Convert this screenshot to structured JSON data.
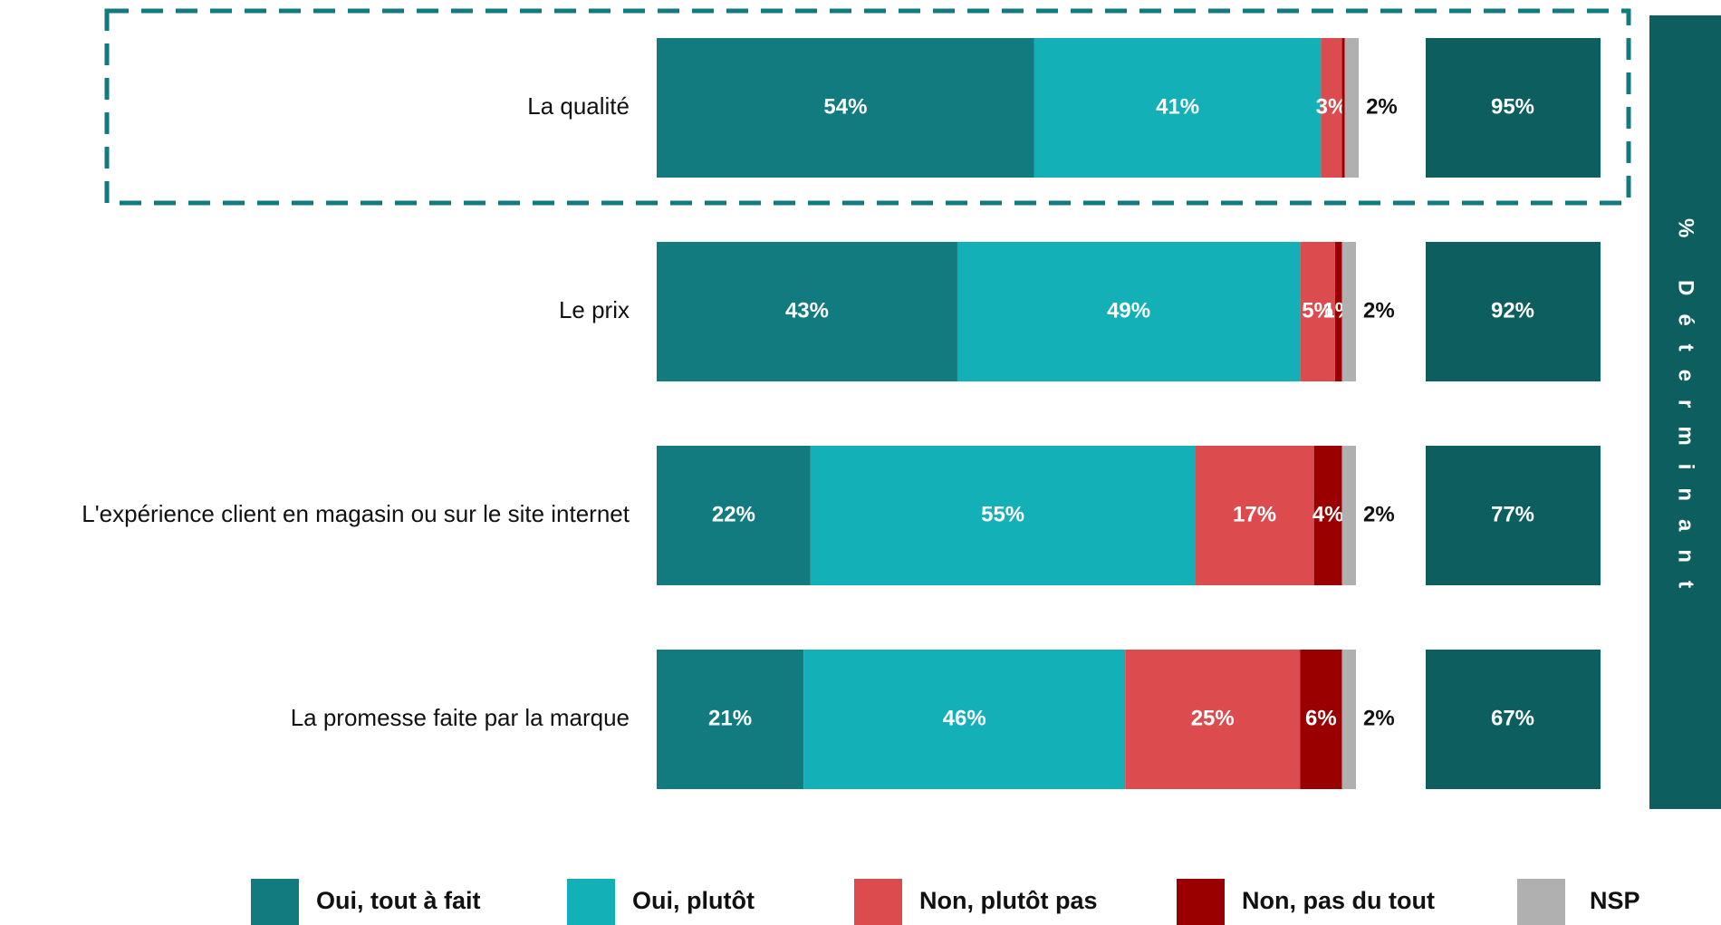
{
  "chart_data": {
    "type": "stacked_barh",
    "categories": [
      "La qualité",
      "Le prix",
      "L'expérience client en magasin ou sur le site internet",
      "La promesse faite par la marque"
    ],
    "xlim": [
      0,
      100
    ],
    "series": [
      {
        "name": "Oui, tout à fait",
        "color": "#127b80",
        "values": [
          54,
          43,
          22,
          21
        ],
        "value_labels": [
          "54%",
          "43%",
          "22%",
          "21%"
        ]
      },
      {
        "name": "Oui, plutôt",
        "color": "#14b0b8",
        "values": [
          41,
          49,
          55,
          46
        ],
        "value_labels": [
          "41%",
          "49%",
          "55%",
          "46%"
        ]
      },
      {
        "name": "Non, plutôt pas",
        "color": "#dc4c4e",
        "values": [
          3,
          5,
          17,
          25
        ],
        "value_labels": [
          "3%",
          "5%",
          "17%",
          "25%"
        ]
      },
      {
        "name": "Non, pas du tout",
        "color": "#9b0000",
        "values": [
          0.4,
          1,
          4,
          6
        ],
        "value_labels": [
          null,
          "1%",
          "4%",
          "6%"
        ]
      },
      {
        "name": "NSP",
        "color": "#b0b0b0",
        "values": [
          2,
          2,
          2,
          2
        ],
        "value_labels": [
          "2%",
          "2%",
          "2%",
          "2%"
        ]
      }
    ],
    "totals": {
      "name": "% Déterminant",
      "color": "#0d5e5e",
      "values": [
        95,
        92,
        77,
        67
      ],
      "value_labels": [
        "95%",
        "92%",
        "77%",
        "67%"
      ]
    },
    "highlight": 0,
    "legend": "bottom"
  }
}
